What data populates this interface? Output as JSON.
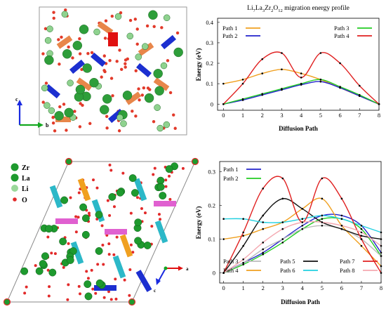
{
  "figure": {
    "top_structure": {
      "axis_labels": {
        "c": "c",
        "b": "b"
      },
      "colors": {
        "la": "#2e9e3a",
        "la_light": "#8fd28f",
        "o": "#e23a2a",
        "zr_poly": "#1c2fd0",
        "orange": "#e8864a",
        "red_poly": "#e01010",
        "axis_c": "#1a2ae0",
        "axis_b": "#14a820"
      }
    },
    "bottom_structure": {
      "legend": [
        {
          "label": "Zr",
          "color": "#1e9a2e"
        },
        {
          "label": "La",
          "color": "#1e9a2e"
        },
        {
          "label": "Li",
          "color": "#9ad89a"
        },
        {
          "label": "O",
          "color": "#e22a2a"
        }
      ],
      "axis_labels": {
        "a": "a",
        "c": "c"
      },
      "colors": {
        "cyan": "#2cb8c8",
        "orange": "#f0a020",
        "pink": "#e060d0",
        "blue": "#1c2fd0"
      }
    }
  },
  "chart_data": [
    {
      "type": "line",
      "title_parts": {
        "base1": "Li",
        "sub1": "7",
        "base2": "La",
        "sub2": "3",
        "base3": "Zr",
        "sub3": "2",
        "base4": "O",
        "sub4": "12",
        "rest": " migration energy profile"
      },
      "xlabel": "Diffusion Path",
      "ylabel": "Energy (eV)",
      "xlim": [
        -0.3,
        8
      ],
      "ylim": [
        -0.03,
        0.42
      ],
      "xticks": [
        "0",
        "1",
        "2",
        "3",
        "4",
        "5",
        "6",
        "7",
        "8"
      ],
      "yticks": [
        "0",
        "0.1",
        "0.2",
        "0.3",
        "0.4"
      ],
      "series": [
        {
          "name": "Path 1",
          "color": "#f0a020",
          "x": [
            0,
            1,
            2,
            3,
            4,
            5,
            6,
            7,
            8
          ],
          "y": [
            0.1,
            0.12,
            0.15,
            0.17,
            0.15,
            0.12,
            0.08,
            0.04,
            0.0
          ]
        },
        {
          "name": "Path 2",
          "color": "#2222cc",
          "x": [
            0,
            1,
            2,
            3,
            4,
            5,
            6,
            7,
            8
          ],
          "y": [
            0.0,
            0.02,
            0.045,
            0.07,
            0.095,
            0.11,
            0.08,
            0.04,
            0.0
          ]
        },
        {
          "name": "Path 3",
          "color": "#22cc22",
          "x": [
            0,
            1,
            2,
            3,
            4,
            5,
            6,
            7,
            8
          ],
          "y": [
            0.0,
            0.025,
            0.05,
            0.075,
            0.1,
            0.12,
            0.085,
            0.045,
            0.0
          ]
        },
        {
          "name": "Path 4",
          "color": "#e02020",
          "x": [
            0,
            1,
            2,
            3,
            4,
            5,
            6,
            7,
            8
          ],
          "y": [
            0.0,
            0.1,
            0.22,
            0.25,
            0.13,
            0.25,
            0.2,
            0.09,
            0.0
          ]
        }
      ]
    },
    {
      "type": "line",
      "xlabel": "Diffusion Path",
      "ylabel": "Energy (eV)",
      "xlim": [
        -0.2,
        8
      ],
      "ylim": [
        -0.03,
        0.33
      ],
      "xticks": [
        "0",
        "1",
        "2",
        "3",
        "4",
        "5",
        "6",
        "7",
        "8"
      ],
      "yticks": [
        "0",
        "0.1",
        "0.2",
        "0.3"
      ],
      "series": [
        {
          "name": "Path 1",
          "color": "#2222cc",
          "x": [
            0,
            1,
            2,
            3,
            4,
            5,
            6,
            7,
            8
          ],
          "y": [
            0.0,
            0.03,
            0.06,
            0.1,
            0.14,
            0.17,
            0.17,
            0.14,
            0.06
          ]
        },
        {
          "name": "Path 2",
          "color": "#22cc22",
          "x": [
            0,
            1,
            2,
            3,
            4,
            5,
            6,
            7,
            8
          ],
          "y": [
            0.0,
            0.025,
            0.055,
            0.09,
            0.13,
            0.16,
            0.16,
            0.13,
            0.05
          ]
        },
        {
          "name": "Path 3",
          "color": "#bbbbbb",
          "x": [
            0,
            1,
            2,
            3,
            4,
            5,
            6,
            7,
            8
          ],
          "y": [
            0.0,
            0.03,
            0.07,
            0.1,
            0.13,
            0.14,
            0.13,
            0.1,
            0.05
          ]
        },
        {
          "name": "Path 4",
          "color": "#f0a020",
          "x": [
            0,
            1,
            2,
            3,
            4,
            5,
            6,
            7,
            8
          ],
          "y": [
            0.1,
            0.11,
            0.13,
            0.15,
            0.19,
            0.22,
            0.14,
            0.08,
            0.02
          ]
        },
        {
          "name": "Path 5",
          "color": "#111111",
          "x": [
            0,
            1,
            2,
            3,
            4,
            5,
            6,
            7,
            8
          ],
          "y": [
            0.0,
            0.08,
            0.17,
            0.22,
            0.19,
            0.15,
            0.13,
            0.11,
            0.1
          ]
        },
        {
          "name": "Path 6",
          "color": "#22d0e0",
          "x": [
            0,
            1,
            2,
            3,
            4,
            5,
            6,
            7,
            8
          ],
          "y": [
            0.16,
            0.16,
            0.15,
            0.15,
            0.16,
            0.17,
            0.16,
            0.14,
            0.12
          ]
        },
        {
          "name": "Path 7",
          "color": "#e02020",
          "x": [
            0,
            1,
            2,
            3,
            4,
            5,
            6,
            7,
            8
          ],
          "y": [
            0.0,
            0.12,
            0.25,
            0.28,
            0.15,
            0.28,
            0.22,
            0.1,
            0.0
          ]
        },
        {
          "name": "Path 8",
          "color": "#f4a8b0",
          "x": [
            0,
            1,
            2,
            3,
            4,
            5,
            6,
            7,
            8
          ],
          "y": [
            0.0,
            0.04,
            0.09,
            0.13,
            0.15,
            0.15,
            0.14,
            0.12,
            0.08
          ]
        }
      ]
    }
  ]
}
